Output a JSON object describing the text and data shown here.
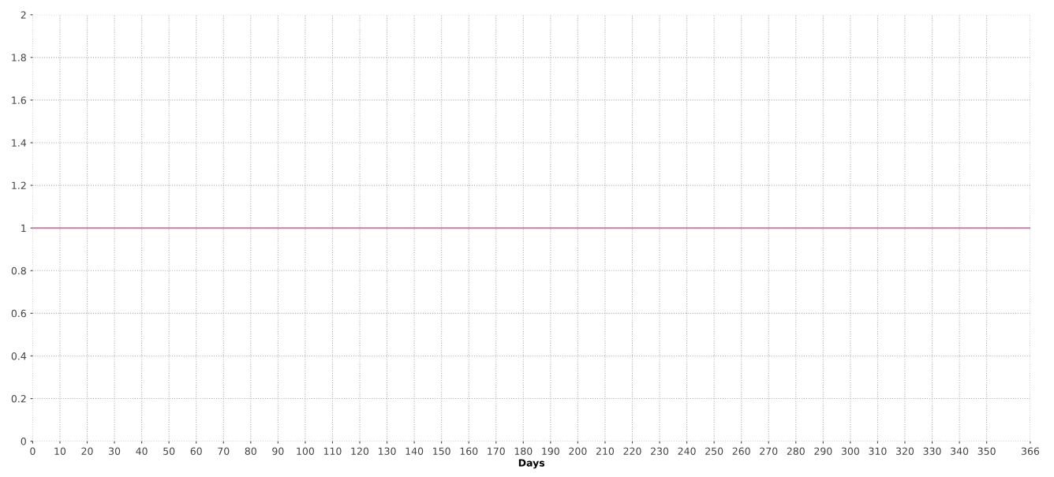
{
  "chart_data": {
    "type": "line",
    "xlabel": "Days",
    "x": [
      0,
      366
    ],
    "series": [
      {
        "color": "#c77fa8",
        "values": [
          1,
          1
        ]
      }
    ],
    "xlim": [
      0,
      366
    ],
    "ylim": [
      0,
      2
    ],
    "xticks": [
      0,
      10,
      20,
      30,
      40,
      50,
      60,
      70,
      80,
      90,
      100,
      110,
      120,
      130,
      140,
      150,
      160,
      170,
      180,
      190,
      200,
      210,
      220,
      230,
      240,
      250,
      260,
      270,
      280,
      290,
      300,
      310,
      320,
      330,
      340,
      350,
      366
    ],
    "yticks": [
      0,
      0.2,
      0.4,
      0.6,
      0.8,
      1,
      1.2,
      1.4,
      1.6,
      1.8,
      2
    ],
    "grid": true,
    "line_style": "solid",
    "marker": "none"
  }
}
